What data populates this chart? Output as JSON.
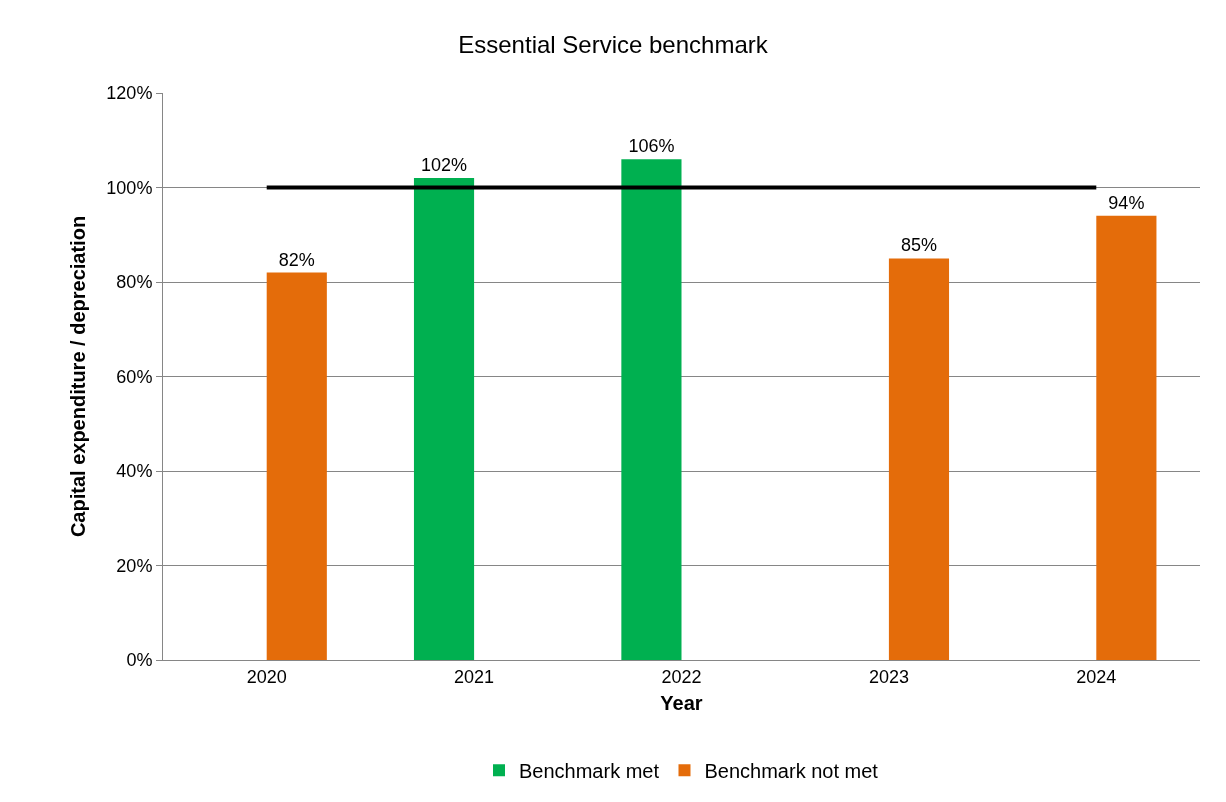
{
  "chart_data": {
    "type": "bar",
    "title": "Essential Service benchmark",
    "xlabel": "Year",
    "ylabel": "Capital expenditure / depreciation",
    "categories": [
      "2020",
      "2021",
      "2022",
      "2023",
      "2024"
    ],
    "series": [
      {
        "name": "Benchmark met",
        "color": "#00b050",
        "values": [
          null,
          102,
          106,
          null,
          null
        ],
        "value_labels": [
          null,
          "102%",
          "106%",
          null,
          null
        ]
      },
      {
        "name": "Benchmark not met",
        "color": "#e46c0a",
        "values": [
          82,
          null,
          null,
          85,
          94
        ],
        "value_labels": [
          "82%",
          null,
          null,
          "85%",
          "94%"
        ]
      }
    ],
    "ylim": [
      0,
      120
    ],
    "yticks": [
      {
        "value": 0,
        "label": "0%"
      },
      {
        "value": 20,
        "label": "20%"
      },
      {
        "value": 40,
        "label": "40%"
      },
      {
        "value": 60,
        "label": "60%"
      },
      {
        "value": 80,
        "label": "80%"
      },
      {
        "value": 100,
        "label": "100%"
      },
      {
        "value": 120,
        "label": "120%"
      }
    ],
    "ref_lines": [
      {
        "axis": "y",
        "value": 100,
        "color": "#000000"
      }
    ],
    "grid": "y",
    "legend": "bottom"
  }
}
